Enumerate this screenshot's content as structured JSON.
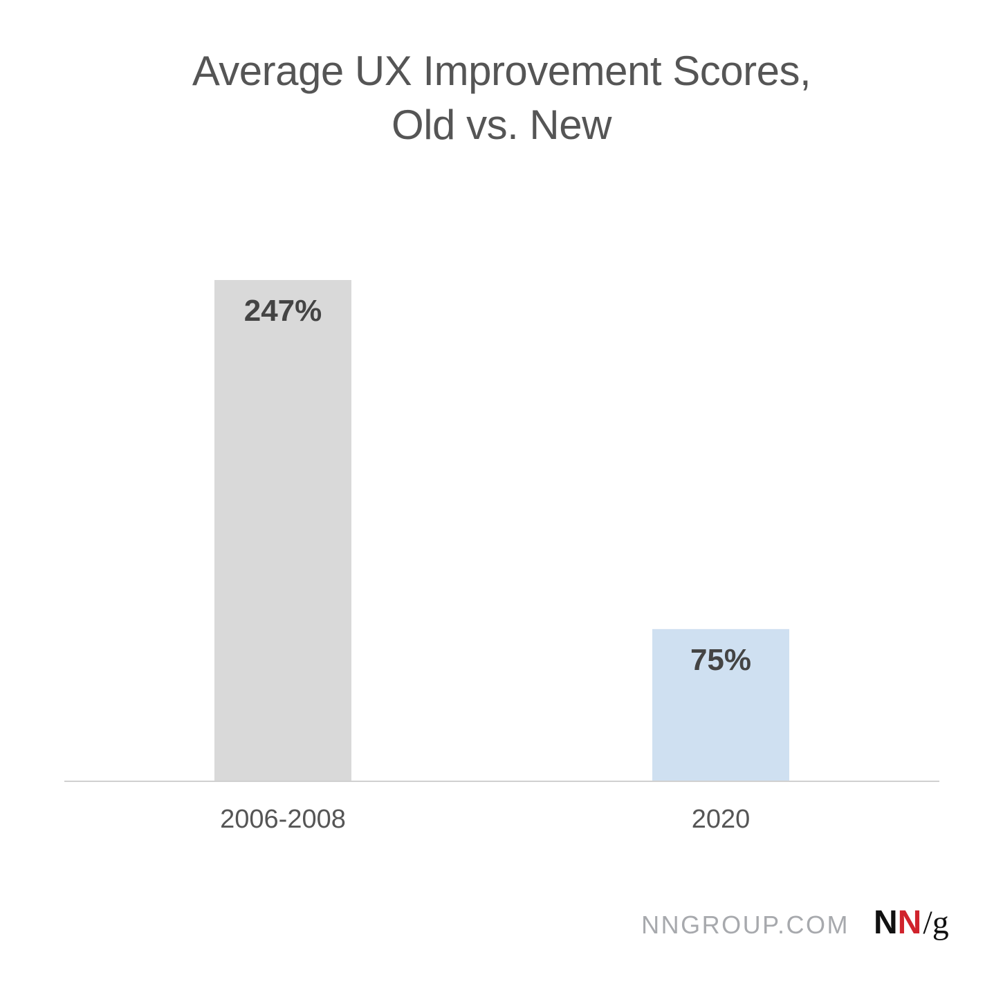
{
  "chart_data": {
    "type": "bar",
    "title": [
      "Average UX Improvement Scores,",
      "Old vs. New"
    ],
    "categories": [
      "2006-2008",
      "2020"
    ],
    "values": [
      247,
      75
    ],
    "value_labels": [
      "247%",
      "75%"
    ],
    "bar_colors": [
      "#d9d9d9",
      "#cfe0f1"
    ],
    "xlabel": "",
    "ylabel": "",
    "ylim": [
      0,
      247
    ],
    "grid": false,
    "legend": "none"
  },
  "footer": {
    "site": "NNGROUP.COM",
    "logo": {
      "part1": "N",
      "part2": "N",
      "slash": "/",
      "part3": "g",
      "accent_color": "#d0232c"
    }
  },
  "colors": {
    "title": "#555555",
    "value_label": "#444444",
    "tick_label": "#555555",
    "axis_line": "#d0d0d0"
  }
}
